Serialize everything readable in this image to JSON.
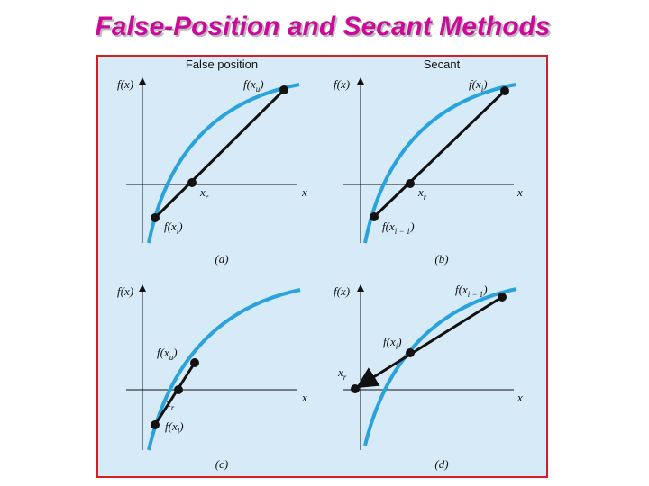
{
  "title": "False-Position and Secant Methods",
  "panels": [
    {
      "header": "False position",
      "label": "(a)",
      "y_axis": "f(x)",
      "x_axis": "x",
      "points": [
        {
          "base": "f(x",
          "sub": "u",
          "end": ")"
        },
        {
          "base": "x",
          "sub": "r"
        },
        {
          "base": "f(x",
          "sub": "l",
          "end": ")"
        }
      ]
    },
    {
      "header": "Secant",
      "label": "(b)",
      "y_axis": "f(x)",
      "x_axis": "x",
      "points": [
        {
          "base": "f(x",
          "sub": "i",
          "end": ")"
        },
        {
          "base": "x",
          "sub": "r"
        },
        {
          "base": "f(x",
          "sub": "i − 1",
          "end": ")"
        }
      ]
    },
    {
      "label": "(c)",
      "y_axis": "f(x)",
      "x_axis": "x",
      "points": [
        {
          "base": "f(x",
          "sub": "u",
          "end": ")"
        },
        {
          "base": "x",
          "sub": "r"
        },
        {
          "base": "f(x",
          "sub": "l",
          "end": ")"
        }
      ]
    },
    {
      "label": "(d)",
      "y_axis": "f(x)",
      "x_axis": "x",
      "points": [
        {
          "base": "f(x",
          "sub": "i − 1",
          "end": ")"
        },
        {
          "base": "f(x",
          "sub": "i",
          "end": ")"
        },
        {
          "base": "x",
          "sub": "r"
        }
      ]
    }
  ]
}
